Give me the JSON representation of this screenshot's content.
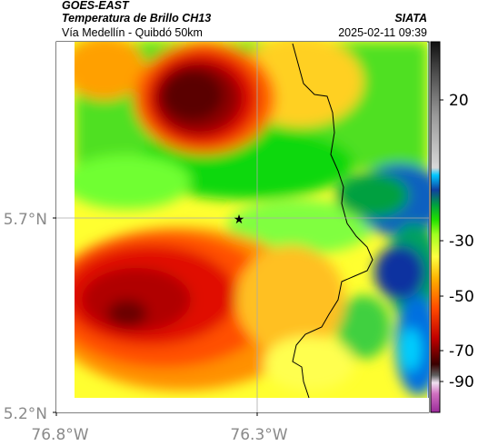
{
  "header": {
    "satellite": "GOES-EAST",
    "product": "Temperatura de Brillo CH13",
    "route": "Vía Medellín - Quibdó 50km",
    "agency": "SIATA",
    "datetime": "2025-02-11 09:39"
  },
  "axes": {
    "x_ticks": [
      "76.8°W",
      "76.3°W"
    ],
    "y_ticks": [
      "5.7°N",
      "5.2°N"
    ]
  },
  "colorbar": {
    "ticks": [
      "20",
      "-30",
      "-50",
      "-70",
      "-90"
    ]
  },
  "marker": {
    "symbol": "★"
  }
}
